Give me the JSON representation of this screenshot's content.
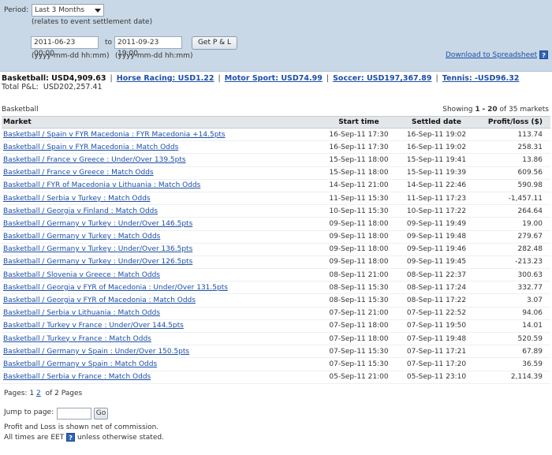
{
  "filter": {
    "period_label": "Period:",
    "period_value": "Last 3 Months",
    "period_note": "(relates to event settlement date)",
    "from_value": "2011-06-23 00:00",
    "to_label": "to",
    "to_value": "2011-09-23 19:00",
    "from_format": "(yyyy-mm-dd hh:mm)",
    "to_format": "(yyyy-mm-dd hh:mm)",
    "button_label": "Get P & L",
    "download_label": "Download to Spreadsheet",
    "help_glyph": "?"
  },
  "summary": {
    "basketball": "Basketball: USD4,909.63",
    "horse_racing": "Horse Racing: USD1.22",
    "motor_sport": "Motor Sport: USD74.99",
    "soccer": "Soccer: USD197,367.89",
    "tennis": "Tennis: -USD96.32",
    "total": "Total P&L:  USD202,257.41",
    "separator": "|"
  },
  "caption": {
    "title": "Basketball",
    "showing_prefix": "Showing",
    "range_start": "1",
    "range_dash": "-",
    "range_end": "20",
    "of_text": "of 35 markets"
  },
  "table": {
    "headers": [
      "Market",
      "Start time",
      "Settled date",
      "Profit/loss ($)"
    ],
    "rows": [
      [
        "Basketball / Spain v FYR Macedonia : FYR Macedonia +14.5pts",
        "16-Sep-11 17:30",
        "16-Sep-11 19:02",
        "113.74"
      ],
      [
        "Basketball / Spain v FYR Macedonia : Match Odds",
        "16-Sep-11 17:30",
        "16-Sep-11 19:02",
        "258.31"
      ],
      [
        "Basketball / France v Greece : Under/Over 139.5pts",
        "15-Sep-11 18:00",
        "15-Sep-11 19:41",
        "13.86"
      ],
      [
        "Basketball / France v Greece : Match Odds",
        "15-Sep-11 18:00",
        "15-Sep-11 19:39",
        "609.56"
      ],
      [
        "Basketball / FYR of Macedonia v Lithuania : Match Odds",
        "14-Sep-11 21:00",
        "14-Sep-11 22:46",
        "590.98"
      ],
      [
        "Basketball / Serbia v Turkey : Match Odds",
        "11-Sep-11 15:30",
        "11-Sep-11 17:23",
        "-1,457.11"
      ],
      [
        "Basketball / Georgia v Finland : Match Odds",
        "10-Sep-11 15:30",
        "10-Sep-11 17:22",
        "264.64"
      ],
      [
        "Basketball / Germany v Turkey : Under/Over 146.5pts",
        "09-Sep-11 18:00",
        "09-Sep-11 19:49",
        "19.00"
      ],
      [
        "Basketball / Germany v Turkey : Match Odds",
        "09-Sep-11 18:00",
        "09-Sep-11 19:48",
        "279.67"
      ],
      [
        "Basketball / Germany v Turkey : Under/Over 136.5pts",
        "09-Sep-11 18:00",
        "09-Sep-11 19:46",
        "282.48"
      ],
      [
        "Basketball / Germany v Turkey : Under/Over 126.5pts",
        "09-Sep-11 18:00",
        "09-Sep-11 19:45",
        "-213.23"
      ],
      [
        "Basketball / Slovenia v Greece : Match Odds",
        "08-Sep-11 21:00",
        "08-Sep-11 22:37",
        "300.63"
      ],
      [
        "Basketball / Georgia v FYR of Macedonia : Under/Over 131.5pts",
        "08-Sep-11 15:30",
        "08-Sep-11 17:24",
        "332.77"
      ],
      [
        "Basketball / Georgia v FYR of Macedonia : Match Odds",
        "08-Sep-11 15:30",
        "08-Sep-11 17:22",
        "3.07"
      ],
      [
        "Basketball / Serbia v Lithuania : Match Odds",
        "07-Sep-11 21:00",
        "07-Sep-11 22:52",
        "94.06"
      ],
      [
        "Basketball / Turkey v France : Under/Over 144.5pts",
        "07-Sep-11 18:00",
        "07-Sep-11 19:50",
        "14.01"
      ],
      [
        "Basketball / Turkey v France : Match Odds",
        "07-Sep-11 18:00",
        "07-Sep-11 19:48",
        "520.59"
      ],
      [
        "Basketball / Germany v Spain : Under/Over 150.5pts",
        "07-Sep-11 15:30",
        "07-Sep-11 17:21",
        "67.89"
      ],
      [
        "Basketball / Germany v Spain : Match Odds",
        "07-Sep-11 15:30",
        "07-Sep-11 17:20",
        "36.59"
      ],
      [
        "Basketball / Serbia v France : Match Odds",
        "05-Sep-11 21:00",
        "05-Sep-11 23:10",
        "2,114.39"
      ]
    ]
  },
  "pagination": {
    "label": "Pages:",
    "current": "1",
    "next": "2",
    "of_text": "of 2 Pages"
  },
  "footer": {
    "jump_label": "Jump to page:",
    "go_label": "Go",
    "commission_note": "Profit and Loss is shown net of commission.",
    "times_prefix": "All times are EET",
    "times_suffix": "unless otherwise stated."
  }
}
